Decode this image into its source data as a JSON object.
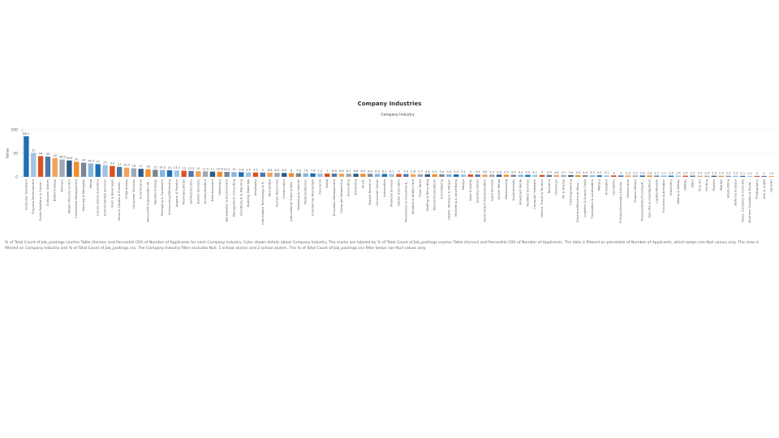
{
  "chart_data": {
    "type": "bar",
    "title": "Company Industries",
    "subtitle": "Company Industry",
    "ylabel": "Value",
    "categories": [
      "Computer Hardware",
      "Program Development",
      "Public Relations & Comm...",
      "Computer Games",
      "Biotechnology",
      "Wireless",
      "Motion Pictures & Film",
      "Investment Management",
      "Banking & Mortgage",
      "Media",
      "Luxury Goods & Jewelry",
      "Environmental Services",
      "Food & Beverages",
      "Venture Capital & Private...",
      "Philanthropy",
      "Consumer Services",
      "E-Commerce",
      "Non-profit Organization M...",
      "Nanotechnology",
      "Packaging & Containers",
      "Outsourcing/Offshoring",
      "Apparel & Fashion",
      "Pharmaceuticals",
      "Semiconductors",
      "Events Services",
      "Airlines/Aviation",
      "Entertainment",
      "Veterinary",
      "Renewables & Environment",
      "Management Consulting",
      "Architecture & Planning",
      "Building Materials",
      "Hospitality",
      "Information Technology & S...",
      "Real Estate",
      "Human Resources",
      "Construction",
      "International Trade & Dev...",
      "Gambling & Casinos",
      "Medical Devices",
      "Commercial Real Estate",
      "Insurance",
      "Retail",
      "Education Management",
      "Computer Networking",
      "Accounting",
      "Publishing",
      "Music",
      "Market Research",
      "Consumer Goods",
      "Automotive",
      "Financial Services",
      "Higher Education",
      "Mechanical or Industrial E...",
      "Hospital & Health Care",
      "Think Tanks",
      "Staffing & Recruiting",
      "Telecommunications",
      "Fund-Raising",
      "Health, Wellness & Fitness",
      "Marketing & Advertising",
      "Design",
      "Wine & Spirits",
      "Sporting Goods",
      "Government Administration",
      "Legal Services",
      "Online Media",
      "Warehousing",
      "Supermarkets",
      "Broadcast Media",
      "Facilities Services",
      "Computer Software",
      "Leisure, Travel & Tourism",
      "Research",
      "Chemicals",
      "Oil & Energy",
      "Civil Engineering",
      "Electrical/Electronic Manu...",
      "Logistics & Supply Chain",
      "Translation & Localization",
      "Military",
      "Animation",
      "Cosmetics",
      "Primary/Secondary Educat...",
      "Restaurants",
      "Graphic Design",
      "Transportation/Trucking/R...",
      "Security & Investigations",
      "Capital Markets",
      "Industrial Automation",
      "Machinery",
      "Mining & Metals",
      "Utilities",
      "Dairy",
      "Fine Art",
      "Printing",
      "Plastics",
      "Textiles",
      "Shipbuilding",
      "Defense & Space",
      "Glass, Ceramics & Concrete",
      "Business Supplies & Equip...",
      "Photography",
      "Arts & Crafts",
      "Libraries"
    ],
    "values": [
      86.1,
      51,
      44,
      43,
      40,
      36.8,
      34.8,
      32,
      30,
      28.5,
      27,
      25,
      23,
      21,
      19.5,
      18,
      17,
      16,
      15,
      14.5,
      14,
      13.5,
      13,
      12.5,
      12,
      11.5,
      11,
      10.8,
      10.5,
      10,
      9.8,
      9.5,
      9.2,
      9,
      8.8,
      8.5,
      8.2,
      8,
      7.8,
      7.6,
      7.4,
      7.2,
      7,
      6.9,
      6.8,
      6.7,
      6.6,
      6.5,
      6.4,
      6.3,
      6.2,
      6.1,
      6,
      5.9,
      5.8,
      5.7,
      5.6,
      5.5,
      5.4,
      5.3,
      5.2,
      5.1,
      5,
      4.9,
      4.8,
      4.7,
      4.6,
      4.5,
      4.4,
      4.3,
      4.2,
      4.1,
      4,
      3.9,
      3.8,
      3.7,
      3.6,
      3.5,
      3.4,
      3.3,
      3.2,
      3.1,
      3,
      3,
      2.9,
      2.9,
      2.8,
      2.8,
      2.7,
      2.7,
      2.6,
      2.6,
      2.5,
      2.5,
      2.4,
      2.4,
      2.3,
      2.3,
      2.2,
      2.2,
      2.1,
      2.1,
      2,
      2,
      1.9
    ],
    "palette": [
      "#1f6fb2",
      "#a0c4e4",
      "#d9541e",
      "#4e79a7",
      "#f0a35e",
      "#9fa8b3",
      "#2b5c8a",
      "#f28e2b",
      "#7b8794",
      "#86b6dd"
    ],
    "ylim": [
      0,
      100
    ],
    "yticks": [
      0,
      50,
      100
    ],
    "grid": true,
    "note": "% of Total Count of Job_postings coulmn Table (Across) and Percentile (50) of Number of Applicants for each Company Industry. Color shows details about Company Industry. The marks are labeled by % of Total Count of Job_postings coulmn Table (Across) and Percentile (50) of Number of Applicants. The data is filtered on percentile of Number of Applicants, which keeps non-Null values only. The view is filtered on Company Industry and % of Total Count of Job_postings.csv. The Company Industry filter excludes Null, 1 school alumni and 2 school alumni. The % of Total Count of Job_postings.csv filter keeps non-Null values only."
  }
}
